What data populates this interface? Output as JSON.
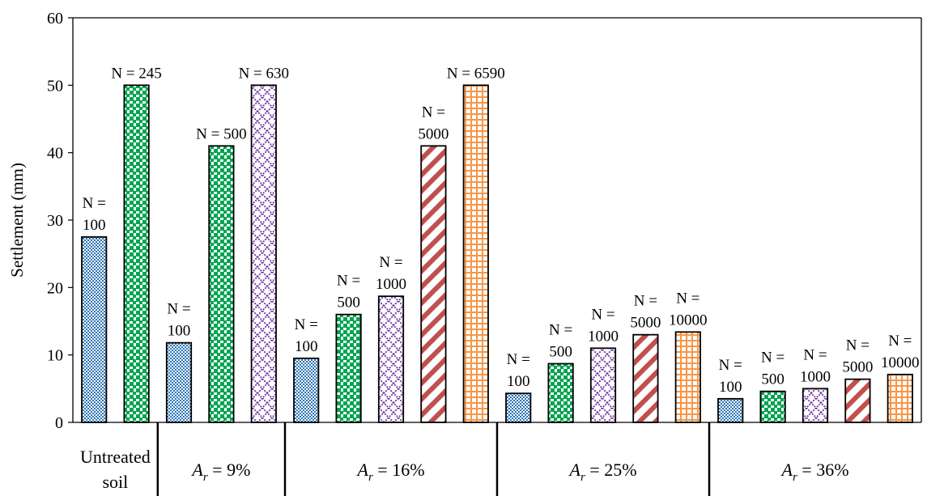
{
  "chart_data": {
    "type": "bar",
    "ylabel": "Settlement (mm)",
    "ylim": [
      0,
      60
    ],
    "yticks": [
      "0",
      "10",
      "20",
      "30",
      "40",
      "50",
      "60"
    ],
    "grid": false,
    "legend": "none",
    "groups": [
      {
        "label_text": "Untreated soil",
        "label_lines": [
          "Untreated",
          "soil"
        ],
        "bars": [
          {
            "series": "N100",
            "value": 27.5,
            "label_lines": [
              "N =",
              "100"
            ]
          },
          {
            "series": "N500",
            "value": 50,
            "label_lines": [
              "N = 245"
            ]
          }
        ]
      },
      {
        "label_text": "Ar = 9%",
        "label_prefix": "A",
        "label_sub": "r",
        "label_suffix": " = 9%",
        "bars": [
          {
            "series": "N100",
            "value": 11.8,
            "label_lines": [
              "N =",
              "100"
            ]
          },
          {
            "series": "N500",
            "value": 41,
            "label_lines": [
              "N = 500"
            ]
          },
          {
            "series": "N1000",
            "value": 50,
            "label_lines": [
              "N = 630"
            ]
          }
        ]
      },
      {
        "label_text": "Ar = 16%",
        "label_prefix": "A",
        "label_sub": "r",
        "label_suffix": " = 16%",
        "bars": [
          {
            "series": "N100",
            "value": 9.5,
            "label_lines": [
              "N =",
              "100"
            ]
          },
          {
            "series": "N500",
            "value": 16,
            "label_lines": [
              "N =",
              "500"
            ]
          },
          {
            "series": "N1000",
            "value": 18.7,
            "label_lines": [
              "N =",
              "1000"
            ]
          },
          {
            "series": "N5000",
            "value": 41,
            "label_lines": [
              "N =",
              "5000"
            ]
          },
          {
            "series": "N10000",
            "value": 50,
            "label_lines": [
              "N = 6590"
            ]
          }
        ]
      },
      {
        "label_text": "Ar = 25%",
        "label_prefix": "A",
        "label_sub": "r",
        "label_suffix": " = 25%",
        "bars": [
          {
            "series": "N100",
            "value": 4.3,
            "label_lines": [
              "N =",
              "100"
            ]
          },
          {
            "series": "N500",
            "value": 8.7,
            "label_lines": [
              "N =",
              "500"
            ]
          },
          {
            "series": "N1000",
            "value": 11,
            "label_lines": [
              "N =",
              "1000"
            ]
          },
          {
            "series": "N5000",
            "value": 13,
            "label_lines": [
              "N =",
              "5000"
            ]
          },
          {
            "series": "N10000",
            "value": 13.4,
            "label_lines": [
              "N =",
              "10000"
            ]
          }
        ]
      },
      {
        "label_text": "Ar = 36%",
        "label_prefix": "A",
        "label_sub": "r",
        "label_suffix": " = 36%",
        "bars": [
          {
            "series": "N100",
            "value": 3.5,
            "label_lines": [
              "N =",
              "100"
            ]
          },
          {
            "series": "N500",
            "value": 4.6,
            "label_lines": [
              "N =",
              "500"
            ]
          },
          {
            "series": "N1000",
            "value": 5,
            "label_lines": [
              "N =",
              "1000"
            ]
          },
          {
            "series": "N5000",
            "value": 6.4,
            "label_lines": [
              "N =",
              "5000"
            ]
          },
          {
            "series": "N10000",
            "value": 7.1,
            "label_lines": [
              "N =",
              "10000"
            ]
          }
        ]
      }
    ],
    "series_styles": {
      "N100": {
        "pattern": "fine-dots",
        "color": "#2E75B6"
      },
      "N500": {
        "pattern": "large-squares",
        "color": "#00A550"
      },
      "N1000": {
        "pattern": "diamond-lattice",
        "color": "#7030A0"
      },
      "N5000": {
        "pattern": "diagonal-stripes",
        "color": "#C0504D"
      },
      "N10000": {
        "pattern": "grid",
        "color": "#F79646"
      }
    }
  }
}
